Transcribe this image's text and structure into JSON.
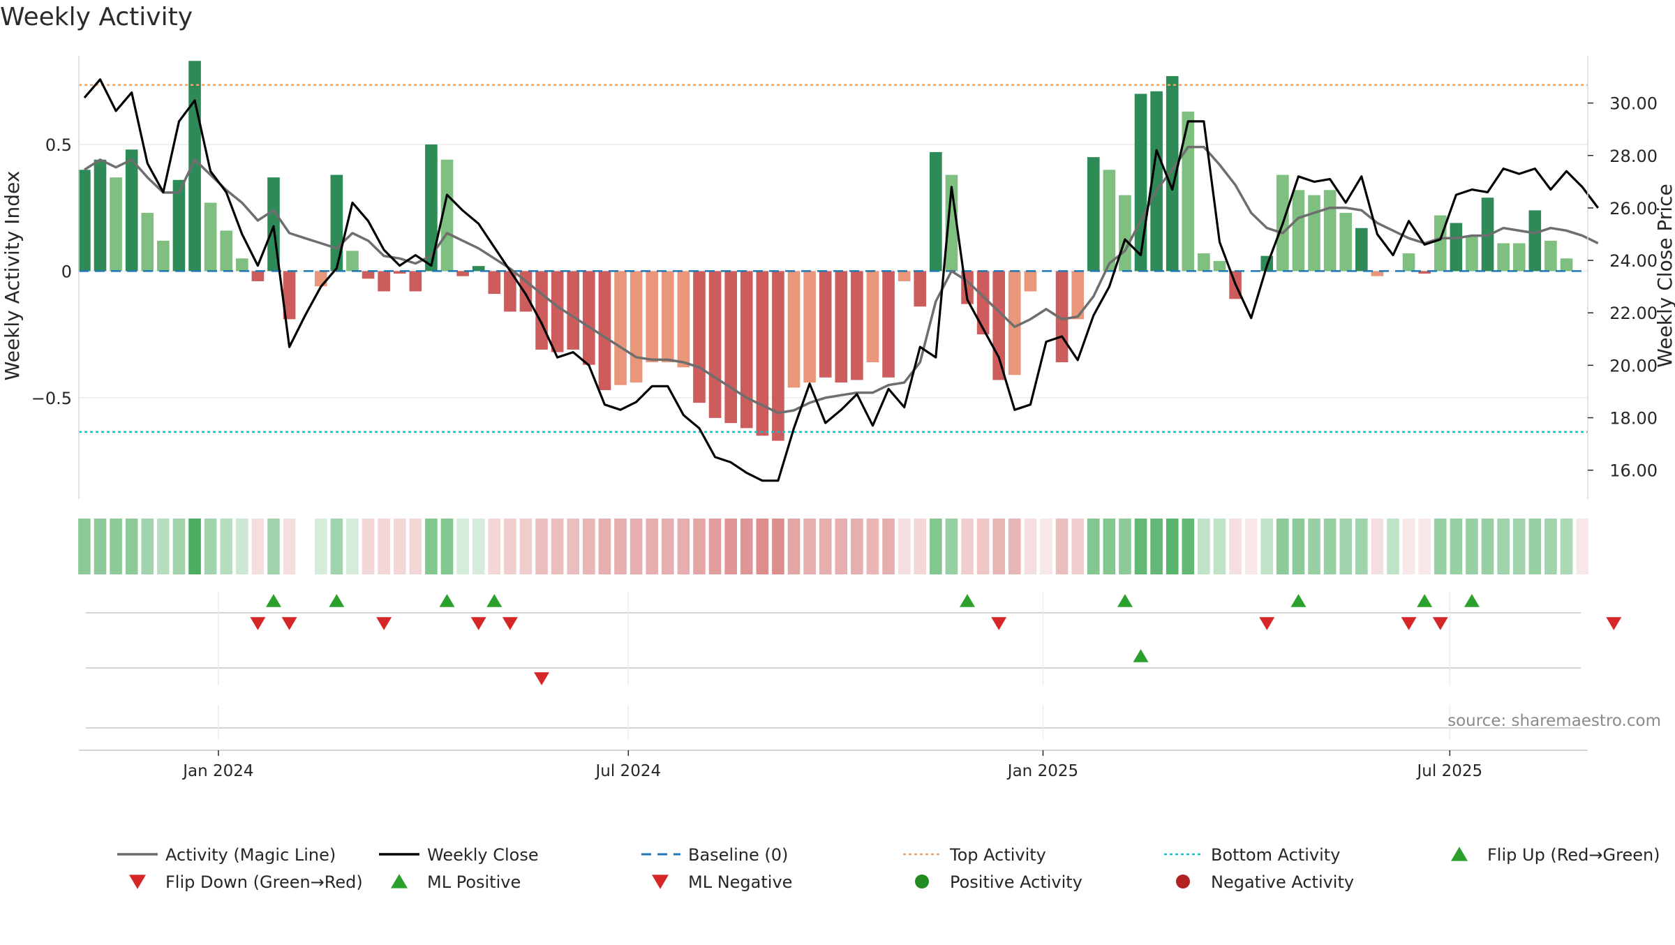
{
  "chart_data": {
    "type": "bar",
    "title": "Weekly Activity",
    "ylabel_left": "Weekly Activity Index",
    "ylabel_right": "Weekly Close Price",
    "source": "source: sharemaestro.com",
    "left_ticks": [
      {
        "v": 0.5,
        "label": "0.5"
      },
      {
        "v": 0,
        "label": "0"
      },
      {
        "v": -0.5,
        "label": "−0.5"
      }
    ],
    "right_ticks": [
      {
        "v": 30,
        "label": "30.00"
      },
      {
        "v": 28,
        "label": "28.00"
      },
      {
        "v": 26,
        "label": "26.00"
      },
      {
        "v": 24,
        "label": "24.00"
      },
      {
        "v": 22,
        "label": "22.00"
      },
      {
        "v": 20,
        "label": "20.00"
      },
      {
        "v": 18,
        "label": "18.00"
      },
      {
        "v": 16,
        "label": "16.00"
      }
    ],
    "x_ticks": [
      {
        "week": 8.5,
        "label": "Jan 2024"
      },
      {
        "week": 34.5,
        "label": "Jul 2024"
      },
      {
        "week": 60.8,
        "label": "Jan 2025"
      },
      {
        "week": 86.6,
        "label": "Jul 2025"
      }
    ],
    "left_ylim": [
      -0.9,
      0.85
    ],
    "right_ylim": [
      14.9,
      31.8
    ],
    "top_activity": 0.735,
    "bottom_activity": -0.635,
    "activity": [
      0.4,
      0.44,
      0.37,
      0.48,
      0.23,
      0.12,
      0.36,
      0.83,
      0.27,
      0.16,
      0.05,
      -0.04,
      0.37,
      -0.19,
      0,
      -0.06,
      0.38,
      0.08,
      -0.03,
      -0.08,
      -0.01,
      -0.08,
      0.5,
      0.44,
      -0.02,
      0.02,
      -0.09,
      -0.16,
      -0.16,
      -0.31,
      -0.32,
      -0.31,
      -0.37,
      -0.47,
      -0.45,
      -0.44,
      -0.36,
      -0.36,
      -0.38,
      -0.52,
      -0.58,
      -0.6,
      -0.62,
      -0.65,
      -0.67,
      -0.46,
      -0.44,
      -0.42,
      -0.44,
      -0.43,
      -0.36,
      -0.42,
      -0.04,
      -0.14,
      0.47,
      0.38,
      -0.13,
      -0.25,
      -0.43,
      -0.41,
      -0.08,
      0,
      -0.36,
      -0.19,
      0.45,
      0.4,
      0.3,
      0.7,
      0.71,
      0.77,
      0.63,
      0.07,
      0.04,
      -0.11,
      0,
      0.06,
      0.38,
      0.32,
      0.3,
      0.32,
      0.23,
      0.17,
      -0.02,
      0,
      0.07,
      -0.01,
      0.22,
      0.19,
      0.14,
      0.29,
      0.11,
      0.11,
      0.24,
      0.12,
      0.05,
      0
    ],
    "activity_shade": [
      "d",
      "d",
      "l",
      "d",
      "l",
      "l",
      "d",
      "d",
      "l",
      "l",
      "l",
      "d",
      "d",
      "d",
      "l",
      "l",
      "d",
      "l",
      "d",
      "d",
      "d",
      "d",
      "d",
      "l",
      "d",
      "d",
      "d",
      "d",
      "d",
      "d",
      "d",
      "d",
      "d",
      "d",
      "l",
      "l",
      "l",
      "l",
      "l",
      "d",
      "d",
      "d",
      "d",
      "d",
      "d",
      "l",
      "l",
      "d",
      "d",
      "d",
      "l",
      "d",
      "l",
      "d",
      "d",
      "l",
      "d",
      "d",
      "d",
      "l",
      "l",
      "l",
      "d",
      "l",
      "d",
      "l",
      "l",
      "d",
      "d",
      "d",
      "l",
      "l",
      "l",
      "d",
      "l",
      "d",
      "l",
      "l",
      "l",
      "l",
      "l",
      "d",
      "l",
      "d",
      "l",
      "d",
      "l",
      "d",
      "l",
      "d",
      "l",
      "l",
      "d",
      "l",
      "l",
      "l"
    ],
    "magic_line": [
      0.4,
      0.44,
      0.41,
      0.44,
      0.37,
      0.31,
      0.31,
      0.44,
      0.38,
      0.32,
      0.27,
      0.2,
      0.24,
      0.15,
      0.13,
      0.11,
      0.09,
      0.15,
      0.12,
      0.06,
      0.05,
      0.03,
      0.06,
      0.15,
      0.12,
      0.09,
      0.05,
      0.01,
      -0.04,
      -0.09,
      -0.14,
      -0.18,
      -0.22,
      -0.26,
      -0.3,
      -0.34,
      -0.35,
      -0.35,
      -0.36,
      -0.38,
      -0.42,
      -0.46,
      -0.5,
      -0.53,
      -0.56,
      -0.55,
      -0.52,
      -0.5,
      -0.49,
      -0.48,
      -0.48,
      -0.45,
      -0.44,
      -0.36,
      -0.12,
      0,
      -0.04,
      -0.1,
      -0.16,
      -0.22,
      -0.19,
      -0.15,
      -0.19,
      -0.18,
      -0.1,
      0.03,
      0.08,
      0.2,
      0.32,
      0.4,
      0.49,
      0.49,
      0.42,
      0.34,
      0.23,
      0.17,
      0.15,
      0.21,
      0.23,
      0.25,
      0.25,
      0.24,
      0.19,
      0.16,
      0.13,
      0.11,
      0.13,
      0.13,
      0.14,
      0.14,
      0.17,
      0.16,
      0.15,
      0.17,
      0.16,
      0.14,
      0.11
    ],
    "weekly_close": [
      30.2,
      30.9,
      29.7,
      30.4,
      27.7,
      26.6,
      29.3,
      30.1,
      27.4,
      26.6,
      25.0,
      23.8,
      25.3,
      20.7,
      21.9,
      23.0,
      23.7,
      26.2,
      25.5,
      24.4,
      23.8,
      24.2,
      23.8,
      26.5,
      25.9,
      25.4,
      24.5,
      23.6,
      22.7,
      21.6,
      20.3,
      20.5,
      20.0,
      18.5,
      18.3,
      18.6,
      19.2,
      19.2,
      18.1,
      17.6,
      16.5,
      16.3,
      15.9,
      15.6,
      15.6,
      17.6,
      19.3,
      17.8,
      18.3,
      18.9,
      17.7,
      19.1,
      18.4,
      20.7,
      20.3,
      26.8,
      22.5,
      21.4,
      20.3,
      18.3,
      18.5,
      20.9,
      21.1,
      20.2,
      21.9,
      23.0,
      24.8,
      24.2,
      28.2,
      26.7,
      29.3,
      29.3,
      24.7,
      23.1,
      21.8,
      23.8,
      25.4,
      27.2,
      27.0,
      27.1,
      26.2,
      27.2,
      25.0,
      24.2,
      25.5,
      24.6,
      24.8,
      26.5,
      26.7,
      26.6,
      27.5,
      27.3,
      27.5,
      26.7,
      27.4,
      26.8,
      26.0
    ],
    "strip_intensity": [
      0.55,
      0.55,
      0.55,
      0.55,
      0.45,
      0.35,
      0.45,
      0.85,
      0.45,
      0.35,
      0.25,
      -0.2,
      0.45,
      -0.2,
      0,
      0.2,
      0.45,
      0.2,
      -0.25,
      -0.25,
      -0.25,
      -0.25,
      0.6,
      0.6,
      0.2,
      0.2,
      -0.25,
      -0.3,
      -0.3,
      -0.4,
      -0.4,
      -0.4,
      -0.45,
      -0.5,
      -0.5,
      -0.5,
      -0.5,
      -0.5,
      -0.5,
      -0.55,
      -0.6,
      -0.65,
      -0.65,
      -0.7,
      -0.7,
      -0.55,
      -0.5,
      -0.5,
      -0.5,
      -0.5,
      -0.45,
      -0.5,
      -0.2,
      -0.25,
      0.6,
      0.5,
      -0.3,
      -0.35,
      -0.45,
      -0.45,
      -0.2,
      -0.15,
      -0.4,
      -0.3,
      0.6,
      0.6,
      0.55,
      0.75,
      0.75,
      0.8,
      0.75,
      0.3,
      0.3,
      -0.2,
      -0.15,
      0.3,
      0.55,
      0.55,
      0.5,
      0.5,
      0.45,
      0.45,
      -0.2,
      0.3,
      -0.15,
      -0.15,
      0.5,
      0.5,
      0.5,
      0.5,
      0.45,
      0.45,
      0.5,
      0.45,
      0.4,
      -0.15
    ],
    "flip_up_weeks": [
      12,
      16,
      23,
      26,
      56,
      66,
      77,
      85,
      88
    ],
    "flip_down_weeks": [
      11,
      13,
      19,
      25,
      27,
      58,
      75,
      84,
      86,
      97
    ],
    "ml_positive_weeks": [
      67
    ],
    "ml_negative_weeks": [
      29
    ],
    "colors": {
      "dark_green": "#2e8b57",
      "light_green": "#7fbf7f",
      "dark_red": "#cd5c5c",
      "light_red": "#e9967a",
      "magic_line": "#6e6e6e",
      "weekly_close": "#000000",
      "baseline": "#1f77b4",
      "top_activity": "#f4a460",
      "bottom_activity": "#17becf",
      "flip_up": "#2ca02c",
      "flip_down": "#d62728",
      "ml_positive": "#2ca02c",
      "ml_negative": "#d62728",
      "positive_activity": "#228b22",
      "negative_activity": "#b22222"
    },
    "legend": [
      {
        "label": "Activity (Magic Line)",
        "kind": "line",
        "color": "#6e6e6e"
      },
      {
        "label": "Weekly Close",
        "kind": "line",
        "color": "#000000"
      },
      {
        "label": "Baseline (0)",
        "kind": "dash",
        "color": "#1f77b4"
      },
      {
        "label": "Top Activity",
        "kind": "dot",
        "color": "#f4a460"
      },
      {
        "label": "Bottom Activity",
        "kind": "dot",
        "color": "#17becf"
      },
      {
        "label": "Flip Up (Red→Green)",
        "kind": "up",
        "color": "#2ca02c"
      },
      {
        "label": "Flip Down (Green→Red)",
        "kind": "down",
        "color": "#d62728"
      },
      {
        "label": "ML Positive",
        "kind": "up",
        "color": "#2ca02c"
      },
      {
        "label": "ML Negative",
        "kind": "down",
        "color": "#d62728"
      },
      {
        "label": "Positive Activity",
        "kind": "circle",
        "color": "#228b22"
      },
      {
        "label": "Negative Activity",
        "kind": "circle",
        "color": "#b22222"
      }
    ]
  }
}
